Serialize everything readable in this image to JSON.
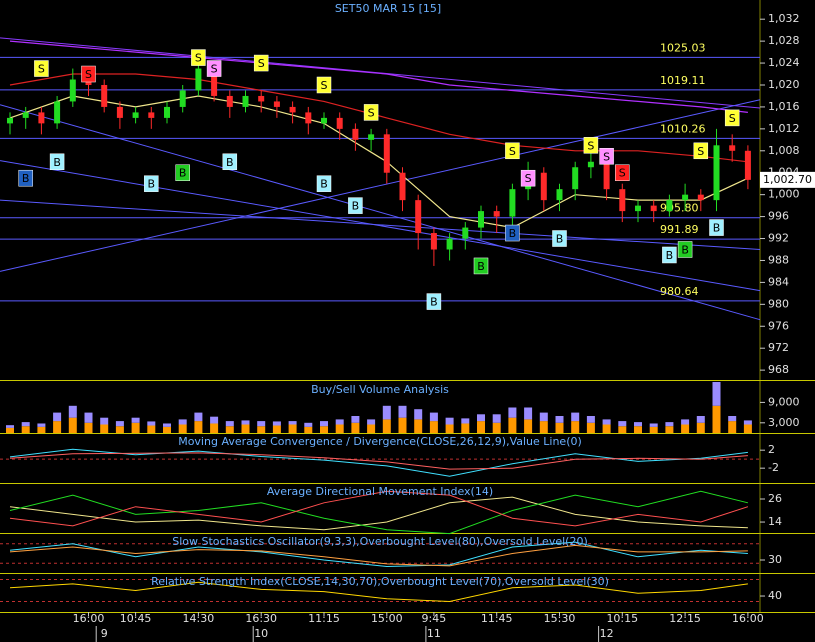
{
  "chart_data": [
    {
      "type": "candlestick",
      "title": "SET50 MAR 15   [15]",
      "categories": [
        null,
        null,
        null,
        null,
        null,
        "16:00",
        null,
        null,
        "10:45",
        null,
        null,
        null,
        "14:30",
        null,
        null,
        null,
        "16:30",
        null,
        null,
        null,
        "11:15",
        null,
        null,
        null,
        "15:00",
        null,
        null,
        "9:45",
        null,
        null,
        null,
        "11:45",
        null,
        null,
        null,
        "15:30",
        null,
        null,
        null,
        "10:15",
        null,
        null,
        null,
        "12:15",
        null,
        null,
        null,
        "16:00"
      ],
      "days": [
        null,
        null,
        null,
        null,
        null,
        null,
        "9",
        null,
        null,
        null,
        null,
        null,
        null,
        null,
        null,
        null,
        "10",
        null,
        null,
        null,
        null,
        null,
        null,
        null,
        null,
        null,
        null,
        "11",
        null,
        null,
        null,
        null,
        null,
        null,
        null,
        null,
        null,
        null,
        "12",
        null,
        null,
        null,
        null,
        null,
        null,
        null,
        null,
        null
      ],
      "open": [
        1013,
        1014,
        1015,
        1013,
        1017,
        1021,
        1020,
        1016,
        1014,
        1015,
        1014,
        1016,
        1019,
        1023,
        1018,
        1016,
        1018,
        1017,
        1016,
        1015,
        1013,
        1014,
        1012,
        1010,
        1011,
        1004,
        999,
        993,
        990,
        992,
        994,
        997,
        996,
        1001,
        1004,
        999,
        1001,
        1005,
        1006,
        1001,
        997,
        998,
        997,
        999,
        1000,
        999,
        1009,
        1008
      ],
      "high": [
        1015,
        1016,
        1016,
        1018,
        1023,
        1022,
        1021,
        1017,
        1016,
        1016,
        1017,
        1020,
        1025,
        1024,
        1019,
        1019,
        1019,
        1018,
        1017,
        1016,
        1015,
        1015,
        1013,
        1012,
        1012,
        1005,
        1000,
        994,
        993,
        995,
        998,
        998,
        1002,
        1006,
        1005,
        1002,
        1006,
        1008,
        1007,
        1002,
        999,
        999,
        1000,
        1002,
        1001,
        1012,
        1011,
        1009
      ],
      "low": [
        1011,
        1012,
        1011,
        1012,
        1016,
        1018,
        1015,
        1012,
        1013,
        1012,
        1013,
        1015,
        1018,
        1017,
        1014,
        1015,
        1015,
        1014,
        1013,
        1011,
        1012,
        1010,
        1008,
        1008,
        1002,
        997,
        990,
        987,
        988,
        990,
        992,
        993,
        994,
        999,
        997,
        997,
        999,
        1003,
        999,
        995,
        995,
        995,
        996,
        997,
        997,
        997,
        1006,
        1001
      ],
      "close": [
        1014,
        1015,
        1013,
        1017,
        1021,
        1020,
        1016,
        1014,
        1015,
        1014,
        1016,
        1019,
        1023,
        1018,
        1016,
        1018,
        1017,
        1016,
        1015,
        1013,
        1014,
        1012,
        1010,
        1011,
        1004,
        999,
        993,
        990,
        992,
        994,
        997,
        996,
        1001,
        1004,
        999,
        1001,
        1005,
        1006,
        1001,
        997,
        998,
        997,
        999,
        1000,
        999,
        1009,
        1008,
        1002.7
      ],
      "up_color": "#22dd22",
      "down_color": "#ff2a2a",
      "ylim": [
        966.2,
        1035.5
      ],
      "yticks": [
        {
          "value": 1032,
          "label": "1,032"
        },
        {
          "value": 1028,
          "label": "1,028"
        },
        {
          "value": 1024,
          "label": "1,024"
        },
        {
          "value": 1020,
          "label": "1,020"
        },
        {
          "value": 1016,
          "label": "1,016"
        },
        {
          "value": 1012,
          "label": "1,012"
        },
        {
          "value": 1008,
          "label": "1,008"
        },
        {
          "value": 1004,
          "label": "1,004"
        },
        {
          "value": 1000,
          "label": "1,000"
        },
        996,
        992,
        988,
        984,
        980,
        976,
        972,
        968
      ],
      "last_price": {
        "value": 1002.7,
        "label": "1,002.70"
      },
      "levels": [
        1025.03,
        1019.11,
        1010.26,
        {
          "value": 995.8,
          "label": "995.80"
        },
        991.89,
        980.64
      ],
      "level_color": "#5a5aff",
      "trendlines": [
        {
          "values": [
            1028.6,
            1015.8
          ],
          "color": "#8a3cff"
        },
        {
          "values": [
            1016.4,
            977.2
          ],
          "color": "#5a5aff"
        },
        {
          "values": [
            986,
            1017.3
          ],
          "color": "#5a5aff"
        },
        {
          "values": [
            1006.2,
            982.5
          ],
          "color": "#5a5aff"
        },
        {
          "values": [
            999,
            990
          ],
          "color": "#5a5aff"
        }
      ],
      "overlays": [
        {
          "color": "#b030ff",
          "x": [
            0,
            4,
            8,
            12,
            16,
            20,
            24,
            28,
            32,
            36,
            40,
            44,
            47
          ],
          "values": [
            1028,
            1027,
            1026,
            1025,
            1024,
            1023,
            1022,
            1020,
            1019,
            1018,
            1017,
            1016,
            1015
          ]
        },
        {
          "color": "#dd2222",
          "x": [
            0,
            4,
            8,
            12,
            16,
            20,
            24,
            28,
            32,
            36,
            40,
            44,
            47
          ],
          "values": [
            1020,
            1022,
            1022,
            1021,
            1019,
            1017,
            1014,
            1011,
            1009,
            1008,
            1008,
            1007,
            1006
          ]
        },
        {
          "color": "#f0e68c",
          "x": [
            0,
            4,
            8,
            12,
            16,
            20,
            24,
            28,
            32,
            36,
            40,
            44,
            47
          ],
          "values": [
            1014,
            1018,
            1016,
            1018,
            1016,
            1013,
            1006,
            996,
            994,
            1000,
            999,
            999,
            1003
          ]
        }
      ],
      "signals": [
        {
          "label": "S",
          "x": 2,
          "price": 1023,
          "color": "#ffff33"
        },
        {
          "label": "S",
          "x": 5,
          "price": 1022,
          "color": "#ff2020"
        },
        {
          "label": "S",
          "x": 12,
          "price": 1025,
          "color": "#ffff33"
        },
        {
          "label": "S",
          "x": 13,
          "price": 1023,
          "color": "#ff90ff"
        },
        {
          "label": "S",
          "x": 16,
          "price": 1024,
          "color": "#ffff33"
        },
        {
          "label": "S",
          "x": 20,
          "price": 1020,
          "color": "#ffff33"
        },
        {
          "label": "S",
          "x": 23,
          "price": 1015,
          "color": "#ffff33"
        },
        {
          "label": "S",
          "x": 32,
          "price": 1008,
          "color": "#ffff33"
        },
        {
          "label": "S",
          "x": 33,
          "price": 1003,
          "color": "#ff90ff"
        },
        {
          "label": "S",
          "x": 37,
          "price": 1009,
          "color": "#ffff33"
        },
        {
          "label": "S",
          "x": 38,
          "price": 1007,
          "color": "#ff90ff"
        },
        {
          "label": "S",
          "x": 39,
          "price": 1004,
          "color": "#ff2020"
        },
        {
          "label": "S",
          "x": 44,
          "price": 1008,
          "color": "#ffff33"
        },
        {
          "label": "S",
          "x": 46,
          "price": 1014,
          "color": "#ffff33"
        },
        {
          "label": "B",
          "x": 1,
          "price": 1003,
          "color": "#2060c0"
        },
        {
          "label": "B",
          "x": 3,
          "price": 1006,
          "color": "#a0f0ff"
        },
        {
          "label": "B",
          "x": 9,
          "price": 1002,
          "color": "#a0f0ff"
        },
        {
          "label": "B",
          "x": 11,
          "price": 1004,
          "color": "#22cc22"
        },
        {
          "label": "B",
          "x": 14,
          "price": 1006,
          "color": "#a0f0ff"
        },
        {
          "label": "B",
          "x": 20,
          "price": 1002,
          "color": "#a0f0ff"
        },
        {
          "label": "B",
          "x": 22,
          "price": 998,
          "color": "#a0f0ff"
        },
        {
          "label": "B",
          "x": 27,
          "price": 980.5,
          "color": "#a0f0ff"
        },
        {
          "label": "B",
          "x": 30,
          "price": 987,
          "color": "#22cc22"
        },
        {
          "label": "B",
          "x": 32,
          "price": 993,
          "color": "#2060c0"
        },
        {
          "label": "B",
          "x": 35,
          "price": 992,
          "color": "#a0f0ff"
        },
        {
          "label": "B",
          "x": 42,
          "price": 989,
          "color": "#a0f0ff"
        },
        {
          "label": "B",
          "x": 43,
          "price": 990,
          "color": "#22cc22"
        },
        {
          "label": "B",
          "x": 45,
          "price": 994,
          "color": "#a0f0ff"
        }
      ]
    },
    {
      "type": "stacked_bar",
      "title": "Buy/Sell Volume Analysis",
      "ylim": [
        0,
        15000
      ],
      "yticks": [
        {
          "value": 9000,
          "label": "9,000"
        },
        {
          "value": 3000,
          "label": "3,000"
        }
      ],
      "series": [
        {
          "color": "#ff9900",
          "values": [
            1500,
            2000,
            1800,
            3500,
            4500,
            3000,
            2500,
            2000,
            3000,
            2200,
            1800,
            2500,
            3500,
            2800,
            2000,
            2500,
            2000,
            2200,
            2500,
            1800,
            2000,
            2500,
            3000,
            2500,
            4000,
            4500,
            4000,
            3500,
            2500,
            2800,
            3500,
            3000,
            4500,
            4000,
            3500,
            3000,
            3500,
            3000,
            2500,
            2000,
            2000,
            1800,
            2000,
            2500,
            3000,
            8000,
            3500,
            2500
          ]
        },
        {
          "color": "#9a8cff",
          "values": [
            800,
            1200,
            1000,
            2500,
            3500,
            3000,
            2000,
            1500,
            1500,
            1200,
            1000,
            1500,
            2500,
            2000,
            1500,
            1200,
            1500,
            1200,
            1000,
            1200,
            1500,
            1500,
            2000,
            1500,
            4000,
            3500,
            3000,
            2500,
            2000,
            1500,
            2000,
            2500,
            3000,
            3500,
            2500,
            2000,
            2500,
            2000,
            1500,
            1500,
            1200,
            1000,
            1200,
            1500,
            2000,
            7000,
            1500,
            1200
          ]
        }
      ]
    },
    {
      "type": "line",
      "title": "Moving Average Convergence / Divergence(CLOSE,26,12,9),Value Line(0)",
      "ylim": [
        -5.3,
        5.6
      ],
      "yticks": [
        2,
        -2
      ],
      "levels": [
        0
      ],
      "series": [
        {
          "color": "#40e0ff",
          "x": [
            0,
            4,
            8,
            12,
            16,
            20,
            24,
            28,
            32,
            36,
            40,
            44,
            47
          ],
          "values": [
            0.5,
            2.2,
            1.0,
            1.8,
            0.6,
            -0.2,
            -1.5,
            -3.8,
            -1.0,
            1.2,
            -0.5,
            0.2,
            1.5
          ]
        },
        {
          "color": "#ff6060",
          "x": [
            0,
            4,
            8,
            12,
            16,
            20,
            24,
            28,
            32,
            36,
            40,
            44,
            47
          ],
          "values": [
            0.2,
            1.2,
            1.3,
            1.4,
            1.0,
            0.3,
            -0.6,
            -2.2,
            -2.0,
            0.0,
            0.2,
            0.0,
            0.8
          ]
        }
      ]
    },
    {
      "type": "line",
      "title": "Average Directional Movement Index(14)",
      "ylim": [
        8.3,
        33.8
      ],
      "yticks": [
        26,
        14
      ],
      "levels": [],
      "series": [
        {
          "color": "#f0e68c",
          "x": [
            0,
            4,
            8,
            12,
            16,
            20,
            24,
            28,
            32,
            36,
            40,
            44,
            47
          ],
          "values": [
            22,
            18,
            14,
            15,
            12,
            10,
            14,
            24,
            27,
            18,
            14,
            12,
            11
          ]
        },
        {
          "color": "#22dd22",
          "x": [
            0,
            4,
            8,
            12,
            16,
            20,
            24,
            28,
            32,
            36,
            40,
            44,
            47
          ],
          "values": [
            20,
            28,
            18,
            20,
            24,
            16,
            10,
            8,
            20,
            28,
            22,
            30,
            24
          ]
        },
        {
          "color": "#ff5050",
          "x": [
            0,
            4,
            8,
            12,
            16,
            20,
            24,
            28,
            32,
            36,
            40,
            44,
            47
          ],
          "values": [
            16,
            12,
            22,
            18,
            14,
            24,
            30,
            28,
            16,
            12,
            18,
            14,
            22
          ]
        }
      ]
    },
    {
      "type": "line",
      "title": "Slow Stochastics Oscillator(9,3,3),Overbought Level(80),Oversold Level(20)",
      "ylim": [
        -10,
        110
      ],
      "yticks": [
        30
      ],
      "levels": [
        80,
        20
      ],
      "series": [
        {
          "color": "#40e0ff",
          "x": [
            0,
            4,
            8,
            12,
            16,
            20,
            24,
            28,
            32,
            36,
            40,
            44,
            47
          ],
          "values": [
            60,
            80,
            40,
            70,
            55,
            30,
            10,
            15,
            70,
            85,
            40,
            60,
            50
          ]
        },
        {
          "color": "#ffa040",
          "x": [
            0,
            4,
            8,
            12,
            16,
            20,
            24,
            28,
            32,
            36,
            40,
            44,
            47
          ],
          "values": [
            55,
            70,
            50,
            62,
            58,
            40,
            18,
            12,
            50,
            75,
            55,
            55,
            58
          ]
        }
      ]
    },
    {
      "type": "line",
      "title": "Relative Strength Index(CLOSE,14,30,70),Overbought Level(70),Oversold Level(30)",
      "ylim": [
        11,
        80
      ],
      "yticks": [
        40
      ],
      "levels": [
        70,
        30
      ],
      "series": [
        {
          "color": "#ffd700",
          "x": [
            0,
            4,
            8,
            12,
            16,
            20,
            24,
            28,
            32,
            36,
            40,
            44,
            47
          ],
          "values": [
            55,
            62,
            50,
            65,
            52,
            48,
            35,
            30,
            55,
            60,
            45,
            50,
            62
          ]
        }
      ]
    }
  ]
}
